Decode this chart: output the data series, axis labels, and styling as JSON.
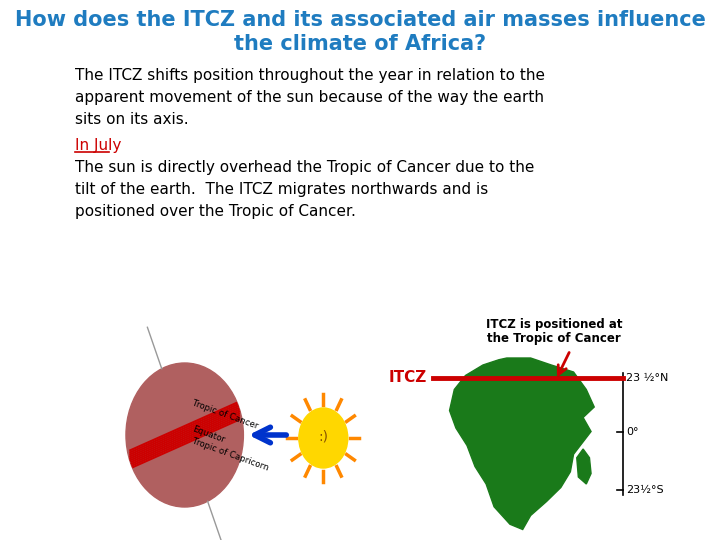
{
  "title_line1": "How does the ITCZ and its associated air masses influence",
  "title_line2": "the climate of Africa?",
  "title_color": "#1F7CC0",
  "body_text_lines": [
    "The ITCZ shifts position throughout the year in relation to the",
    "apparent movement of the sun because of the way the earth",
    "sits on its axis."
  ],
  "in_july_text": "In July",
  "in_july_color": "#CC0000",
  "july_body_lines": [
    "The sun is directly overhead the Tropic of Cancer due to the",
    "tilt of the earth.  The ITCZ migrates northwards and is",
    "positioned over the Tropic of Cancer."
  ],
  "itcz_label_line1": "ITCZ is positioned at",
  "itcz_label_line2": "the Tropic of Cancer",
  "itcz_red_label": "ITCZ",
  "itcz_red_color": "#CC0000",
  "lat_label_N": "23 ½°N",
  "lat_label_0": "0°",
  "lat_label_S": "23½°S",
  "africa_color": "#1A7A1A",
  "earth_color": "#B06060",
  "red_line_color": "#CC0000",
  "blue_arrow_color": "#0033CC",
  "background_color": "#FFFFFF",
  "sun_color": "#FFD700",
  "sun_ray_color": "#FF8800",
  "font_body_size": 11,
  "font_title_size": 15
}
